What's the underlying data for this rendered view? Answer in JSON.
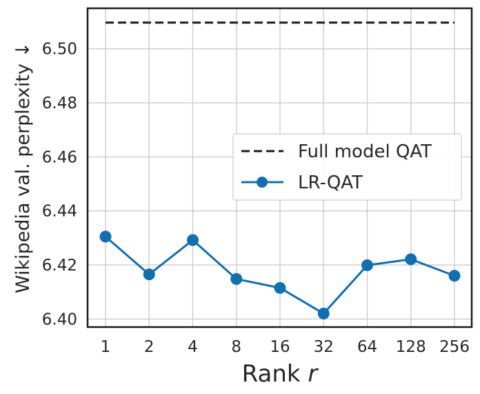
{
  "chart_data": {
    "type": "line",
    "xlabel_prefix": "Rank ",
    "xlabel_var": "r",
    "ylabel": "Wikipedia val. perplexity ↓",
    "categories": [
      "1",
      "2",
      "4",
      "8",
      "16",
      "32",
      "64",
      "128",
      "256"
    ],
    "ylim": [
      6.397,
      6.515
    ],
    "yticks": [
      "6.40",
      "6.42",
      "6.44",
      "6.46",
      "6.48",
      "6.50"
    ],
    "grid": true,
    "legend_position": "center-right",
    "series": [
      {
        "name": "Full model QAT",
        "style": "dashed",
        "color": "#1a1a1a",
        "values": [
          6.5097,
          6.5097,
          6.5097,
          6.5097,
          6.5097,
          6.5097,
          6.5097,
          6.5097,
          6.5097
        ]
      },
      {
        "name": "LR-QAT",
        "style": "solid-marker",
        "color": "#0f6fb0",
        "values": [
          6.4305,
          6.4165,
          6.4292,
          6.4148,
          6.4115,
          6.402,
          6.4199,
          6.4221,
          6.416
        ]
      }
    ]
  }
}
